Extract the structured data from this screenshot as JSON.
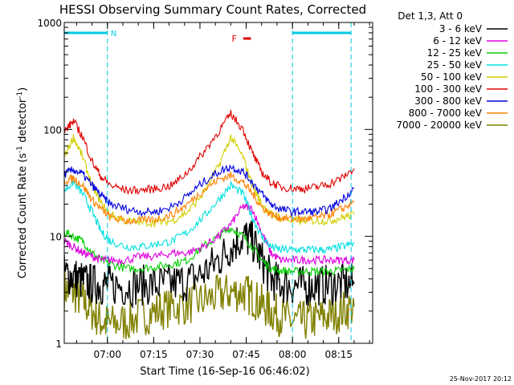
{
  "chart_data": {
    "type": "line",
    "title": "HESSI Observing Summary Count Rates, Corrected",
    "xlabel": "Start Time (16-Sep-16 06:46:02)",
    "ylabel_main": "Corrected Count Rate (s",
    "ylabel_sup1": "-1",
    "ylabel_mid": " detector",
    "ylabel_sup2": "-1",
    "ylabel_end": ")",
    "yscale": "log",
    "ylim": [
      1,
      1000
    ],
    "xlim_minutes": [
      0,
      100
    ],
    "x_ticks": [
      {
        "label": "07:00",
        "minutes": 14
      },
      {
        "label": "07:15",
        "minutes": 29
      },
      {
        "label": "07:30",
        "minutes": 44
      },
      {
        "label": "07:45",
        "minutes": 59
      },
      {
        "label": "08:00",
        "minutes": 74
      },
      {
        "label": "08:15",
        "minutes": 89
      }
    ],
    "y_ticks": [
      {
        "label": "1",
        "value": 1
      },
      {
        "label": "10",
        "value": 10
      },
      {
        "label": "100",
        "value": 100
      },
      {
        "label": "1000",
        "value": 1000
      }
    ],
    "legend_title": "Det 1,3, Att 0",
    "legend_position": "right",
    "series": [
      {
        "name": "3 - 6 keV",
        "color": "#000000",
        "x": [
          0,
          3,
          6,
          9,
          12,
          15,
          20,
          25,
          30,
          35,
          40,
          45,
          50,
          54,
          58,
          61,
          64,
          67,
          70,
          74,
          78,
          82,
          86,
          90,
          94
        ],
        "y": [
          4.5,
          4.2,
          3.8,
          3.6,
          3.5,
          3.5,
          3.4,
          3.5,
          3.5,
          3.6,
          3.8,
          4.5,
          6,
          8,
          10,
          9,
          6,
          4,
          3.6,
          3.5,
          3.4,
          3.5,
          3.5,
          3.6,
          3.6
        ]
      },
      {
        "name": "6 - 12 keV",
        "color": "#e000e0",
        "x": [
          0,
          3,
          6,
          9,
          12,
          15,
          20,
          25,
          30,
          35,
          40,
          45,
          50,
          54,
          58,
          61,
          64,
          67,
          70,
          74,
          78,
          82,
          86,
          90,
          94
        ],
        "y": [
          9,
          8,
          7,
          6.5,
          6,
          6,
          6,
          6.5,
          6.5,
          7,
          7,
          8,
          10,
          13,
          19,
          18,
          11,
          7,
          6,
          6,
          6,
          6,
          6,
          6,
          6
        ]
      },
      {
        "name": "12 - 25 keV",
        "color": "#00d000",
        "x": [
          0,
          3,
          6,
          9,
          12,
          15,
          20,
          25,
          30,
          35,
          40,
          45,
          50,
          54,
          58,
          61,
          64,
          67,
          70,
          74,
          78,
          82,
          86,
          90,
          94
        ],
        "y": [
          11,
          10,
          9,
          7,
          6,
          5.5,
          5,
          5,
          5.2,
          5.5,
          6,
          8,
          10,
          12,
          10,
          8,
          6,
          5,
          4.8,
          4.7,
          4.7,
          4.7,
          4.7,
          4.8,
          5
        ]
      },
      {
        "name": "25 - 50 keV",
        "color": "#00e0e0",
        "x": [
          0,
          3,
          6,
          9,
          12,
          15,
          20,
          25,
          30,
          35,
          40,
          45,
          50,
          54,
          58,
          61,
          64,
          67,
          70,
          74,
          78,
          82,
          86,
          90,
          94
        ],
        "y": [
          27,
          32,
          25,
          17,
          11,
          9,
          8,
          8,
          8.5,
          9,
          11,
          15,
          22,
          30,
          25,
          15,
          10,
          8,
          7.5,
          7.5,
          7.5,
          7.5,
          7.5,
          8,
          8.5
        ]
      },
      {
        "name": "50 - 100 keV",
        "color": "#d0d000",
        "x": [
          0,
          3,
          6,
          9,
          12,
          15,
          20,
          25,
          30,
          35,
          40,
          45,
          50,
          54,
          58,
          61,
          64,
          67,
          70,
          74,
          78,
          82,
          86,
          90,
          94
        ],
        "y": [
          55,
          85,
          55,
          30,
          20,
          16,
          14,
          13.5,
          13.5,
          14,
          17,
          25,
          45,
          85,
          55,
          30,
          20,
          16,
          15,
          14,
          14,
          14,
          14,
          15,
          16
        ]
      },
      {
        "name": "100 - 300 keV",
        "color": "#e00000",
        "x": [
          0,
          3,
          6,
          9,
          12,
          15,
          20,
          25,
          30,
          35,
          40,
          45,
          50,
          54,
          58,
          61,
          64,
          67,
          70,
          74,
          78,
          82,
          86,
          90,
          94
        ],
        "y": [
          95,
          120,
          85,
          50,
          36,
          30,
          27,
          27,
          28,
          30,
          40,
          60,
          95,
          140,
          100,
          60,
          40,
          32,
          29,
          28,
          28,
          29,
          31,
          35,
          43
        ]
      },
      {
        "name": "300 - 800 keV",
        "color": "#0000e0",
        "x": [
          0,
          3,
          6,
          9,
          12,
          15,
          20,
          25,
          30,
          35,
          40,
          45,
          50,
          54,
          58,
          61,
          64,
          67,
          70,
          74,
          78,
          82,
          86,
          90,
          94
        ],
        "y": [
          38,
          42,
          38,
          30,
          24,
          20,
          18,
          17,
          17,
          19,
          24,
          32,
          40,
          45,
          40,
          32,
          25,
          20,
          18,
          17,
          17,
          17,
          18,
          22,
          28
        ]
      },
      {
        "name": "800 - 7000 keV",
        "color": "#ff8000",
        "x": [
          0,
          3,
          6,
          9,
          12,
          15,
          20,
          25,
          30,
          35,
          40,
          45,
          50,
          54,
          58,
          61,
          64,
          67,
          70,
          74,
          78,
          82,
          86,
          90,
          94
        ],
        "y": [
          33,
          35,
          30,
          22,
          18,
          15,
          14,
          14,
          14.5,
          16,
          20,
          27,
          34,
          37,
          32,
          25,
          19,
          16,
          15,
          14.5,
          14.5,
          15,
          16,
          18,
          21
        ]
      },
      {
        "name": "7000 - 20000 keV",
        "color": "#808000",
        "x": [
          0,
          3,
          6,
          9,
          12,
          15,
          20,
          25,
          30,
          35,
          40,
          45,
          50,
          54,
          58,
          61,
          64,
          67,
          70,
          74,
          78,
          82,
          86,
          90,
          94
        ],
        "y": [
          3.2,
          3,
          2.5,
          2,
          1.6,
          1.5,
          1.6,
          1.8,
          2,
          2.2,
          2.3,
          2.5,
          2.8,
          3,
          3,
          2.7,
          2.3,
          2,
          1.8,
          1.6,
          1.6,
          1.7,
          1.8,
          2,
          2.2
        ]
      }
    ],
    "annotations": [
      {
        "label": "N",
        "color": "#00c8e0",
        "x_start": 0,
        "x_end": 14
      },
      {
        "label": "",
        "color": "#00c8e0",
        "x_start": 74,
        "x_end": 93
      },
      {
        "label": "F",
        "color": "#e00000",
        "x_start": 57,
        "x_end": 59
      }
    ]
  },
  "timestamp": "25-Nov-2017 20:12"
}
